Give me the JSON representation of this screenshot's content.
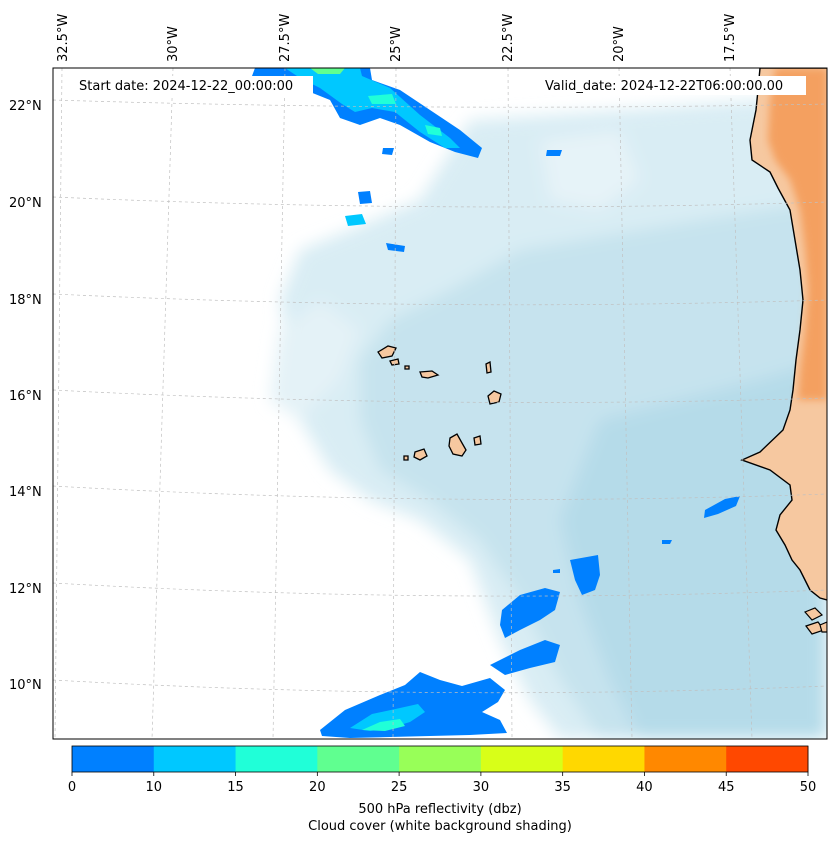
{
  "header": {
    "start_date": "Start date: 2024-12-22_00:00:00",
    "valid_date": "Valid_date: 2024-12-22T06:00:00.00"
  },
  "axes": {
    "lon_labels": [
      "32.5°W",
      "30°W",
      "27.5°W",
      "25°W",
      "22.5°W",
      "20°W",
      "17.5°W"
    ],
    "lat_labels": [
      "22°N",
      "20°N",
      "18°N",
      "16°N",
      "14°N",
      "12°N",
      "10°N"
    ]
  },
  "colorbar": {
    "ticks": [
      "0",
      "10",
      "15",
      "20",
      "25",
      "30",
      "35",
      "40",
      "45",
      "50"
    ],
    "colors": [
      "#0080ff",
      "#00c8ff",
      "#20ffd8",
      "#60ff90",
      "#98ff58",
      "#d8ff18",
      "#ffd800",
      "#ff8800",
      "#ff4800"
    ],
    "label_line1": "500 hPa reflectivity (dbz)",
    "label_line2": "Cloud cover (white background shading)"
  },
  "palette": {
    "land": "#f6c8a0",
    "land_orange": "#f4a060",
    "ocean_cloud": "#bfe0ec",
    "ocean_deep": "#a8d4e4"
  }
}
